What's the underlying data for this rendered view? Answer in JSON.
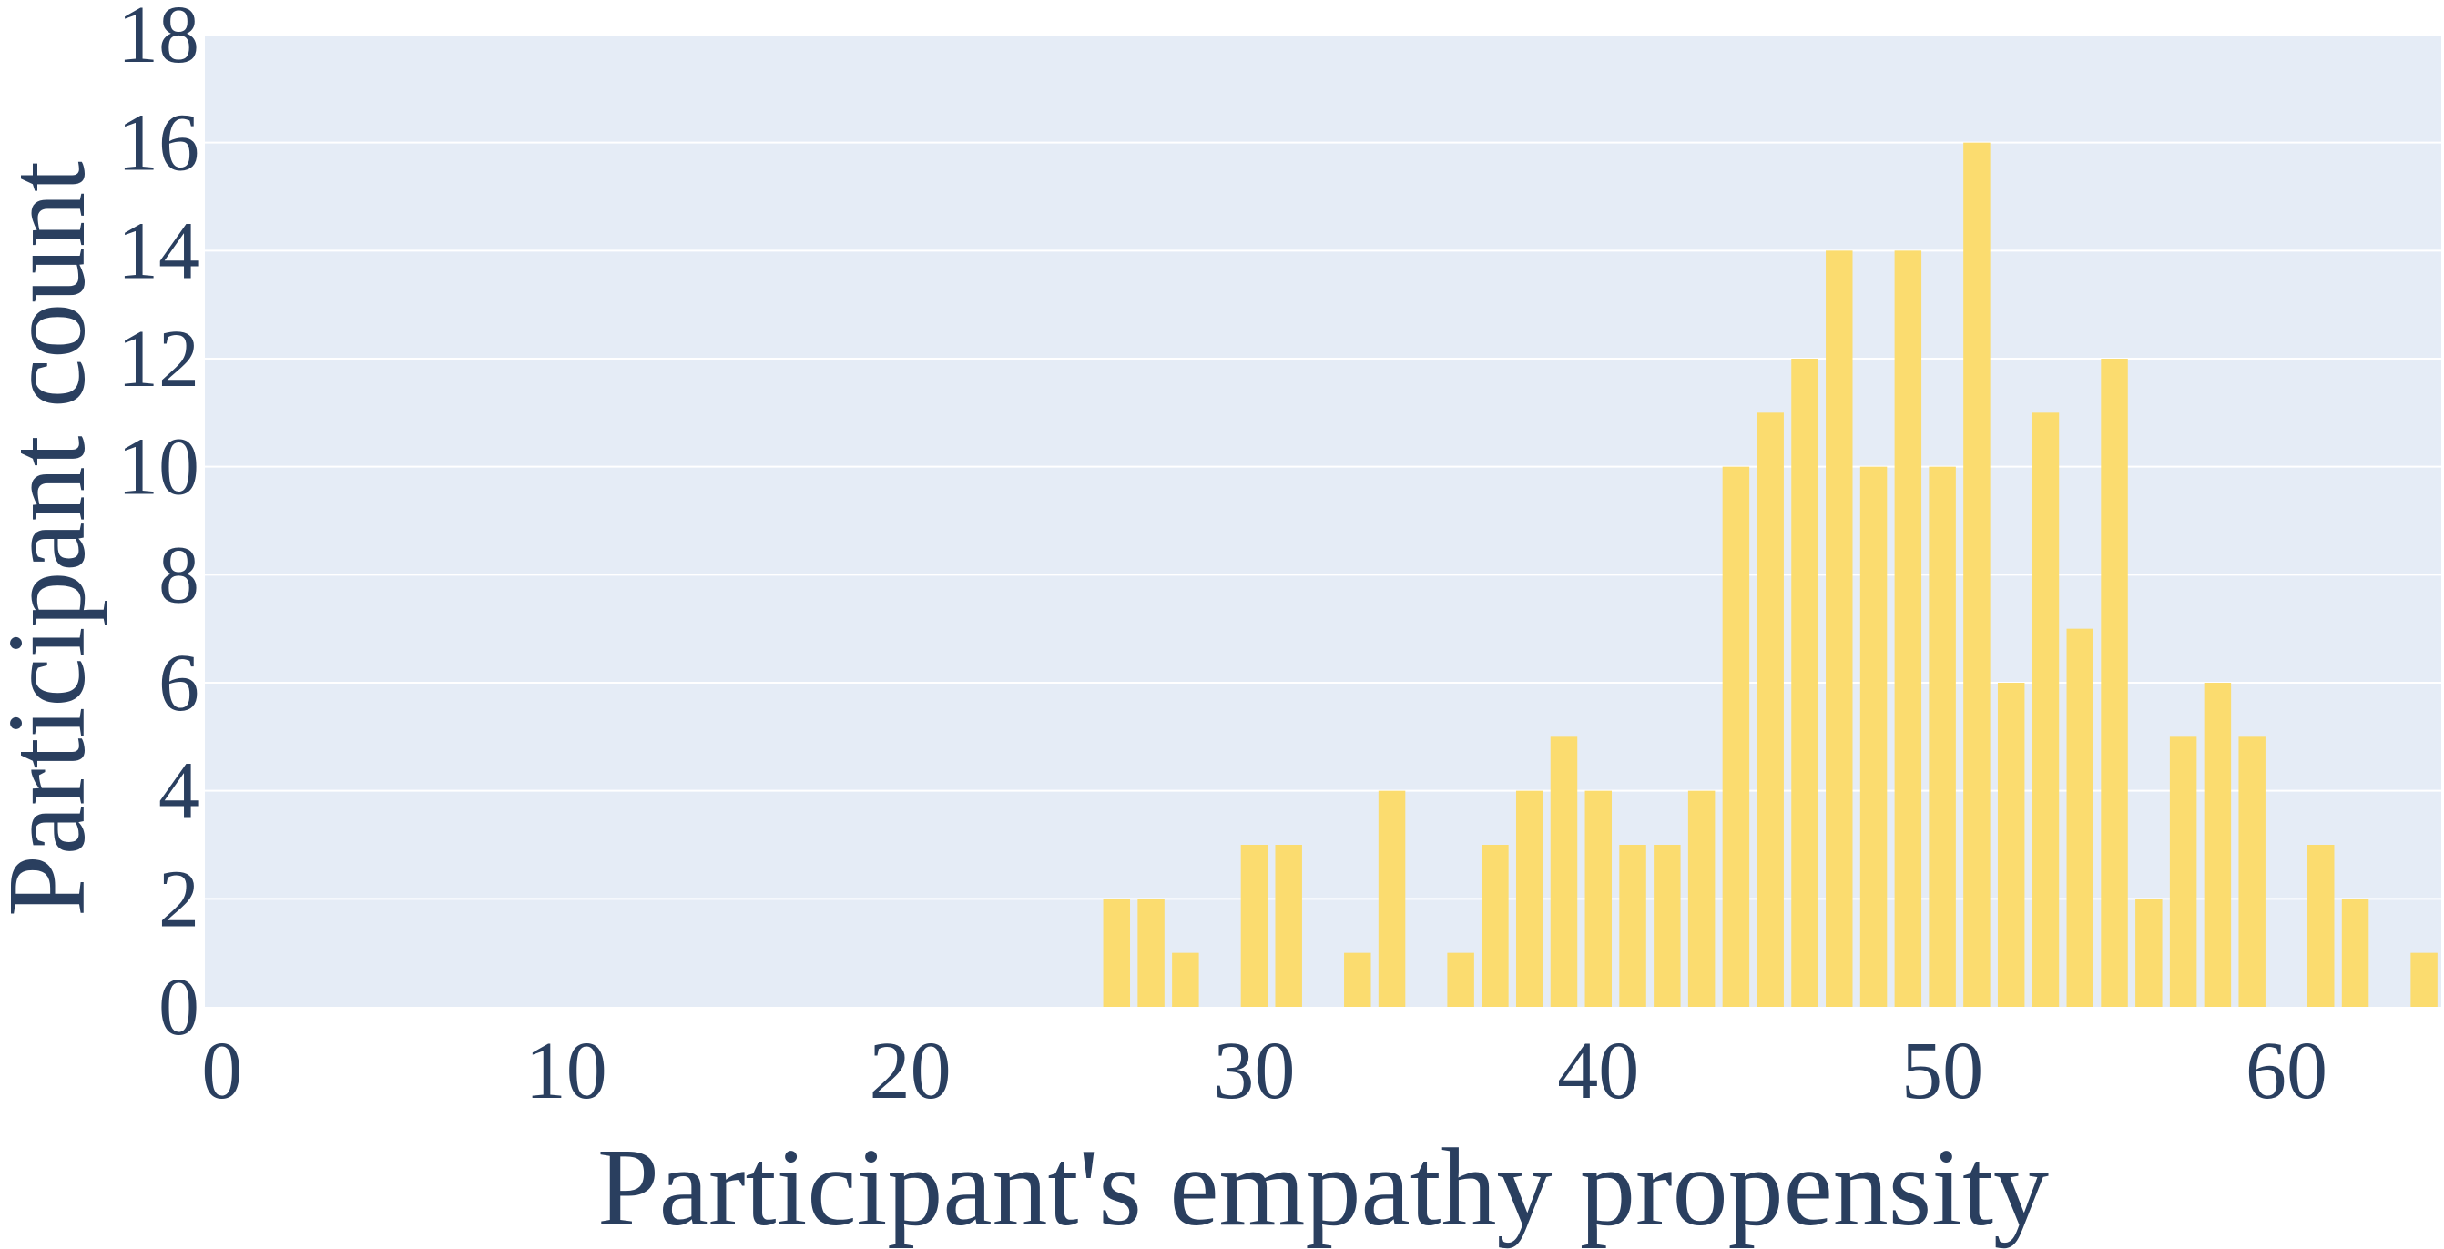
{
  "chart_data": {
    "type": "bar",
    "xlabel": "Participant's empathy propensity",
    "ylabel": "Participant count",
    "xlim": [
      0,
      64
    ],
    "ylim": [
      0,
      18
    ],
    "xticks": [
      0,
      10,
      20,
      30,
      40,
      50,
      60
    ],
    "yticks": [
      0,
      2,
      4,
      6,
      8,
      10,
      12,
      14,
      16,
      18
    ],
    "grid": true,
    "legend": "none",
    "bar_color": "#fbdc6f",
    "plot_bgcolor": "#e5ecf6",
    "text_color": "#2a3f5f",
    "grid_color": "#ffffff",
    "x": [
      26,
      27,
      28,
      30,
      31,
      33,
      34,
      36,
      37,
      38,
      39,
      40,
      41,
      42,
      43,
      44,
      45,
      46,
      47,
      48,
      49,
      50,
      51,
      52,
      53,
      54,
      55,
      56,
      57,
      58,
      59,
      61,
      62,
      64
    ],
    "values": [
      2,
      2,
      1,
      3,
      3,
      1,
      4,
      1,
      3,
      4,
      5,
      4,
      3,
      3,
      4,
      10,
      11,
      12,
      14,
      10,
      14,
      10,
      16,
      6,
      11,
      7,
      12,
      2,
      5,
      6,
      5,
      3,
      2,
      1
    ]
  }
}
